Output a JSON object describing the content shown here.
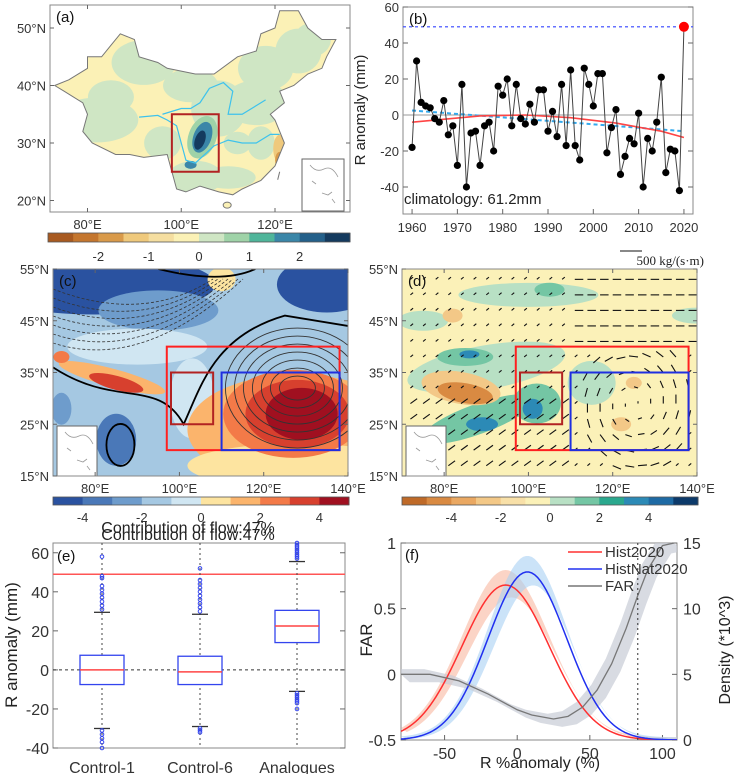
{
  "figure": {
    "panels": [
      "(a)",
      "(b)",
      "(c)",
      "(d)",
      "(e)",
      "(f)"
    ]
  },
  "chart_data": [
    {
      "panel": "(a)",
      "type": "heatmap",
      "title": "",
      "ylabel": "",
      "lon_ticks": [
        "80°E",
        "100°E",
        "120°E"
      ],
      "lat_ticks": [
        "50°N",
        "40°N",
        "30°N",
        "20°N"
      ],
      "lon_range": [
        72,
        136
      ],
      "lat_range": [
        18,
        54
      ],
      "colorbar": {
        "ticks": [
          "-2",
          "-1",
          "0",
          "1",
          "2"
        ],
        "range": [
          -3,
          3
        ],
        "colors": [
          "#a85a20",
          "#c4762e",
          "#d99a4a",
          "#efc97c",
          "#f5dea0",
          "#fbf1b6",
          "#cfe6c4",
          "#9fd3a8",
          "#4fb59a",
          "#3a86a8",
          "#24608a",
          "#143a5e"
        ]
      },
      "box": {
        "lon": [
          98,
          108
        ],
        "lat": [
          25,
          35
        ],
        "color": "#b22222"
      },
      "note": "precipitation anomaly over China, maximum in Sichuan basin"
    },
    {
      "panel": "(b)",
      "type": "line",
      "ylabel": "R anomaly (mm)",
      "xlabel": "",
      "ylim": [
        -55,
        60
      ],
      "xlim": [
        1958,
        2022
      ],
      "yticks": [
        -40,
        -20,
        0,
        20,
        40,
        60
      ],
      "xticks": [
        1960,
        1970,
        1980,
        1990,
        2000,
        2010,
        2020
      ],
      "annotation": "climatology: 61.2mm",
      "x": [
        1960,
        1961,
        1962,
        1963,
        1964,
        1965,
        1966,
        1967,
        1968,
        1969,
        1970,
        1971,
        1972,
        1973,
        1974,
        1975,
        1976,
        1977,
        1978,
        1979,
        1980,
        1981,
        1982,
        1983,
        1984,
        1985,
        1986,
        1987,
        1988,
        1989,
        1990,
        1991,
        1992,
        1993,
        1994,
        1995,
        1996,
        1997,
        1998,
        1999,
        2000,
        2001,
        2002,
        2003,
        2004,
        2005,
        2006,
        2007,
        2008,
        2009,
        2010,
        2011,
        2012,
        2013,
        2014,
        2015,
        2016,
        2017,
        2018,
        2019,
        2020
      ],
      "values": [
        -18,
        30,
        7,
        5,
        4,
        -2,
        -4,
        8,
        -11,
        -6,
        -28,
        17,
        -40,
        -10,
        -9,
        -28,
        -6,
        -4,
        -20,
        16,
        11,
        20,
        -6,
        17,
        -2,
        -5,
        6,
        -4,
        14,
        14,
        -9,
        2,
        -12,
        17,
        -17,
        25,
        -17,
        -25,
        26,
        17,
        5,
        23,
        23,
        -21,
        -7,
        3,
        -33,
        -23,
        -13,
        -16,
        1,
        -40,
        -13,
        -20,
        -4,
        21,
        -32,
        -19,
        -20,
        -42,
        49
      ],
      "highlight": {
        "x": 2020,
        "value": 49,
        "color": "#ff0000"
      },
      "reference_line": {
        "value": 49,
        "style": "dotted",
        "color": "#3344ff"
      },
      "trend_quadratic": {
        "color": "#ff4444",
        "points": [
          [
            1960,
            -4
          ],
          [
            1975,
            -0.5
          ],
          [
            1985,
            0
          ],
          [
            1995,
            -1.5
          ],
          [
            2005,
            -4.5
          ],
          [
            2015,
            -9
          ],
          [
            2020,
            -12.5
          ]
        ]
      },
      "trend_linear": {
        "color": "#33aaee",
        "points": [
          [
            1960,
            2.5
          ],
          [
            2020,
            -9
          ]
        ]
      }
    },
    {
      "panel": "(c)",
      "type": "heatmap",
      "lon_ticks": [
        "80°E",
        "100°E",
        "120°E",
        "140°E"
      ],
      "lat_ticks": [
        "55°N",
        "45°N",
        "35°N",
        "25°N",
        "15°N"
      ],
      "lon_range": [
        70,
        140
      ],
      "lat_range": [
        15,
        55
      ],
      "colorbar": {
        "ticks": [
          "-4",
          "-2",
          "0",
          "2",
          "4"
        ],
        "range": [
          -5,
          5
        ],
        "colors": [
          "#2a52a0",
          "#4a78b8",
          "#6e9ccc",
          "#a5c8e2",
          "#d0e6f2",
          "#fde4a0",
          "#fbb46c",
          "#f37a48",
          "#d7402e",
          "#a01020"
        ]
      },
      "boxes": [
        {
          "lon": [
            97,
            138
          ],
          "lat": [
            20,
            40
          ],
          "color": "#ff2020"
        },
        {
          "lon": [
            98,
            108
          ],
          "lat": [
            25,
            35
          ],
          "color": "#b22222"
        },
        {
          "lon": [
            110,
            138
          ],
          "lat": [
            20,
            35
          ],
          "color": "#1f2fe0"
        }
      ],
      "caption": "Contribution of flow:47%"
    },
    {
      "panel": "(d)",
      "type": "heatmap",
      "lon_ticks": [
        "80°E",
        "100°E",
        "120°E",
        "140°E"
      ],
      "lat_ticks": [
        "55°N",
        "45°N",
        "35°N",
        "25°N",
        "15°N"
      ],
      "lon_range": [
        70,
        140
      ],
      "lat_range": [
        15,
        55
      ],
      "vector_reference": "500 kg/(s·m)",
      "colorbar": {
        "ticks": [
          "-4",
          "-2",
          "0",
          "2",
          "4"
        ],
        "range": [
          -6,
          6
        ],
        "colors": [
          "#bf6a28",
          "#d98a42",
          "#eaa862",
          "#f3c887",
          "#f8e0a8",
          "#fbf1b8",
          "#b8e0c4",
          "#74c6a4",
          "#2aa88e",
          "#2c8ab6",
          "#1e6aa4",
          "#0c3a6a"
        ]
      },
      "boxes": [
        {
          "lon": [
            97,
            138
          ],
          "lat": [
            20,
            40
          ],
          "color": "#ff2020"
        },
        {
          "lon": [
            98,
            108
          ],
          "lat": [
            25,
            35
          ],
          "color": "#b22222"
        },
        {
          "lon": [
            110,
            138
          ],
          "lat": [
            20,
            35
          ],
          "color": "#1f2fe0"
        }
      ]
    },
    {
      "panel": "(e)",
      "type": "box",
      "title": "Contribution of flow:47%",
      "ylabel": "R anomaly (mm)",
      "ylim": [
        -40,
        65
      ],
      "yticks": [
        -40,
        -20,
        0,
        20,
        40,
        60
      ],
      "categories": [
        "Control-1",
        "Control-6",
        "Analogues"
      ],
      "boxes": [
        {
          "name": "Control-1",
          "q1": -7.5,
          "median": 0,
          "q3": 7.5,
          "whisker_low": -30,
          "whisker_high": 29.5,
          "outliers_high": [
            31,
            33,
            35,
            37,
            39,
            41,
            43,
            47,
            48,
            58
          ],
          "outliers_low": [
            -31,
            -33,
            -35,
            -37,
            -40
          ]
        },
        {
          "name": "Control-6",
          "q1": -7.5,
          "median": -1,
          "q3": 7,
          "whisker_low": -29,
          "whisker_high": 28.5,
          "outliers_high": [
            30,
            32,
            34,
            36,
            38,
            40,
            42,
            44,
            46,
            52
          ],
          "outliers_low": [
            -30,
            -31,
            -32
          ]
        },
        {
          "name": "Analogues",
          "q1": 14,
          "median": 22.5,
          "q3": 30.5,
          "whisker_low": -11,
          "whisker_high": 55.5,
          "outliers_high": [
            57,
            58,
            59,
            60,
            61,
            62,
            63,
            64,
            65
          ],
          "outliers_low": [
            -12,
            -13,
            -14,
            -15,
            -16,
            -17,
            -20
          ]
        }
      ],
      "reference_line": {
        "value": 49,
        "color": "#ff5555"
      },
      "zero_line": {
        "value": 0,
        "style": "dashed"
      }
    },
    {
      "panel": "(f)",
      "type": "line",
      "xlabel": "R %anomaly (%)",
      "ylabel": "FAR",
      "ylabel_right": "Density (*10^3)",
      "xlim": [
        -80,
        110
      ],
      "ylim": [
        -0.5,
        1
      ],
      "ylim_right": [
        0,
        15
      ],
      "xticks": [
        -50,
        0,
        50,
        100
      ],
      "yticks": [
        -0.5,
        0,
        0.5,
        1
      ],
      "yticks_right": [
        0,
        5,
        10,
        15
      ],
      "vertical_line": {
        "x": 83,
        "style": "dotted"
      },
      "legend": {
        "placement": "top-right",
        "entries": [
          "Hist2020",
          "HistNat2020",
          "FAR"
        ]
      },
      "series": [
        {
          "name": "Hist2020",
          "axis": "right",
          "color": "#ff3030",
          "band_color": "#f8b8a0",
          "mean": -8,
          "sd": 30,
          "peak": 11.8
        },
        {
          "name": "HistNat2020",
          "axis": "right",
          "color": "#2030f0",
          "band_color": "#a8d0f4",
          "mean": 7,
          "sd": 27,
          "peak": 12.8
        },
        {
          "name": "FAR",
          "axis": "left",
          "color": "#777777",
          "band_color": "#c8ccd6",
          "points": [
            [
              -80,
              0
            ],
            [
              -60,
              0
            ],
            [
              -40,
              -0.05
            ],
            [
              -20,
              -0.15
            ],
            [
              0,
              -0.27
            ],
            [
              10,
              -0.31
            ],
            [
              25,
              -0.34
            ],
            [
              35,
              -0.32
            ],
            [
              45,
              -0.25
            ],
            [
              55,
              -0.12
            ],
            [
              65,
              0.08
            ],
            [
              75,
              0.35
            ],
            [
              83,
              0.6
            ],
            [
              90,
              0.8
            ],
            [
              100,
              0.98
            ],
            [
              108,
              1.0
            ]
          ]
        }
      ]
    }
  ]
}
